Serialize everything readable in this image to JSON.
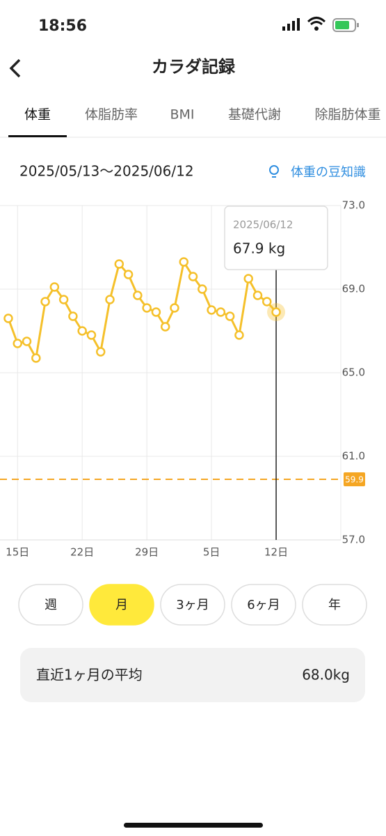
{
  "status_bar": {
    "time": "18:56"
  },
  "header": {
    "title": "カラダ記録"
  },
  "tabs": [
    "体重",
    "体脂肪率",
    "BMI",
    "基礎代謝",
    "除脂肪体重"
  ],
  "active_tab": 0,
  "date_range": "2025/05/13〜2025/06/12",
  "tip_link": "体重の豆知識",
  "chart_data": {
    "type": "line",
    "color": "#f5c02a",
    "values": [
      67.6,
      66.4,
      66.5,
      65.7,
      68.4,
      69.1,
      68.5,
      67.7,
      67.0,
      66.8,
      66.0,
      68.5,
      70.2,
      69.7,
      68.7,
      68.1,
      67.9,
      67.2,
      68.1,
      70.3,
      69.6,
      69.0,
      68.0,
      67.9,
      67.7,
      66.8,
      69.5,
      68.7,
      68.4,
      67.9
    ],
    "xlim": [
      -0.9,
      36
    ],
    "xticks": [
      {
        "value": 1,
        "label": "15日"
      },
      {
        "value": 8,
        "label": "22日"
      },
      {
        "value": 15,
        "label": "29日"
      },
      {
        "value": 22,
        "label": "5日"
      },
      {
        "value": 29,
        "label": "12日"
      }
    ],
    "ylim": [
      57,
      73
    ],
    "yticks": [
      {
        "value": 73,
        "label": "73.0"
      },
      {
        "value": 69,
        "label": "69.0"
      },
      {
        "value": 65,
        "label": "65.0"
      },
      {
        "value": 61,
        "label": "61.0"
      },
      {
        "value": 57,
        "label": "57.0"
      }
    ],
    "grid": true,
    "target": 59.9,
    "target_color": "#f5a623",
    "selected_index": 29,
    "tooltip": {
      "date": "2025/06/12",
      "value_label": "67.9 kg"
    }
  },
  "periods": [
    "週",
    "月",
    "3ヶ月",
    "6ヶ月",
    "年"
  ],
  "active_period": 1,
  "average": {
    "label": "直近1ヶ月の平均",
    "value_label": "68.0kg"
  }
}
